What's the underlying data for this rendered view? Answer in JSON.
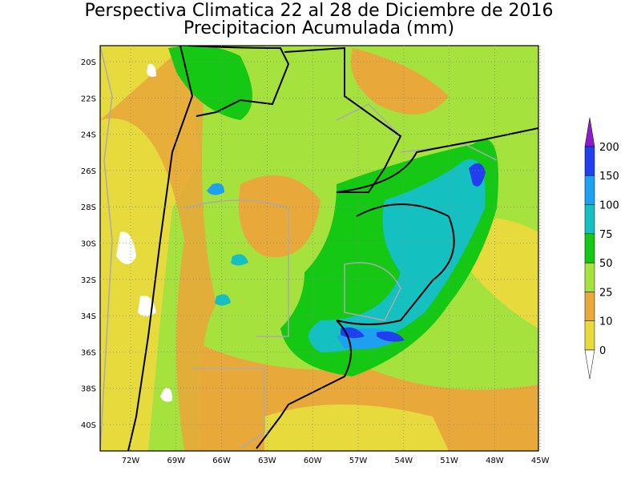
{
  "header": {
    "title": "Perspectiva Climatica 22 al 28 de Diciembre de 2016",
    "subtitle": "Precipitacion Acumulada (mm)"
  },
  "map": {
    "lat_labels": [
      "20S",
      "22S",
      "24S",
      "26S",
      "28S",
      "30S",
      "32S",
      "34S",
      "36S",
      "38S",
      "40S"
    ],
    "lon_labels": [
      "72W",
      "69W",
      "66W",
      "63W",
      "60W",
      "57W",
      "54W",
      "51W",
      "48W",
      "45W"
    ]
  },
  "colorbar": {
    "levels": [
      0,
      10,
      25,
      50,
      75,
      100,
      150,
      200
    ],
    "colors": [
      "#e6da3c",
      "#e8a93a",
      "#a6e23e",
      "#14c814",
      "#14c0c0",
      "#1ea0f0",
      "#2040f0"
    ],
    "over_color": "#8c1ccc"
  }
}
